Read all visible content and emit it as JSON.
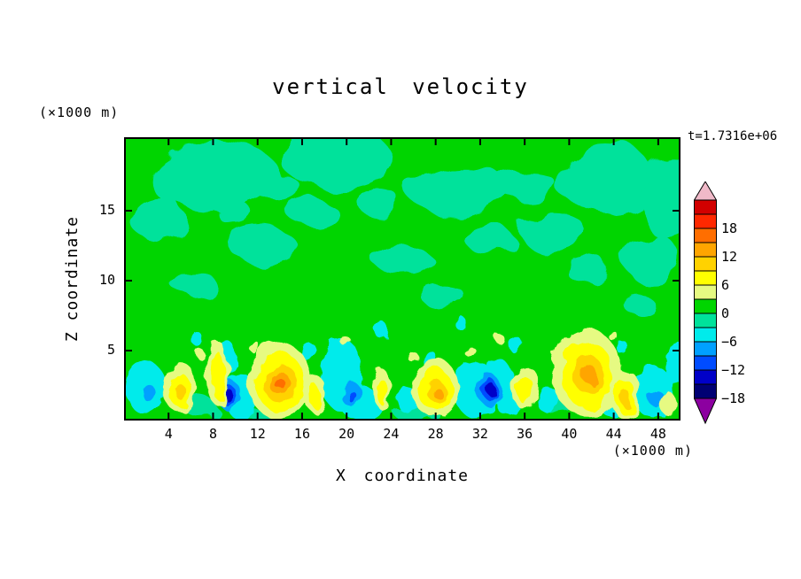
{
  "title": "vertical velocity",
  "time_label": "t=1.7316e+06",
  "y_axis": {
    "label": "Z coordinate",
    "units": "(×1000 m)",
    "ticks": [
      5,
      10,
      15
    ]
  },
  "x_axis": {
    "label": "X coordinate",
    "units": "(×1000 m)",
    "ticks": [
      4,
      8,
      12,
      16,
      20,
      24,
      28,
      32,
      36,
      40,
      44,
      48
    ]
  },
  "colorbar": {
    "tick_labels": [
      "18",
      "12",
      "6",
      "0",
      "−6",
      "−12",
      "−18"
    ],
    "level_step": 3,
    "cell_colors_top_to_bottom": [
      "#d20000",
      "#ff2800",
      "#ff6e00",
      "#ffa500",
      "#ffd200",
      "#ffff00",
      "#e6fa82",
      "#00d500",
      "#00e29b",
      "#00ebeb",
      "#00a0ff",
      "#004cff",
      "#0000c8",
      "#000073"
    ],
    "arrow_top_color": "#f0b9c8",
    "arrow_bottom_color": "#8c00a0"
  },
  "palette": {
    "green_bg": "#00d500",
    "teal": "#00e29b",
    "cyan": "#00ebeb",
    "lightblue": "#00a0ff",
    "blue": "#004cff",
    "darkblue": "#0000c8",
    "paleyellow": "#e6fa82",
    "yellow": "#ffff00",
    "amber": "#ffd200",
    "orange": "#ffa500",
    "deeporange": "#ff6e00"
  },
  "chart_data": {
    "type": "heatmap",
    "title": "vertical velocity",
    "xlabel": "X coordinate (×1000 m)",
    "ylabel": "Z coordinate (×1000 m)",
    "time": "t=1.7316e+06",
    "xlim": [
      0,
      50
    ],
    "ylim": [
      0,
      20
    ],
    "contour_interval": 3,
    "labeled_levels": [
      18,
      12,
      6,
      0,
      -6,
      -12,
      -18
    ],
    "description": "Filled-contour vertical velocity cross-section; near-zero green background aloft with weak negative (teal/cyan) mottling, convective updraft cores (yellow/orange) and downdraft cores (cyan/blue/dark blue) below z≈6.",
    "field": {
      "background_band": {
        "band": "green_bg",
        "value_range": [
          0,
          3
        ]
      },
      "patches": [
        {
          "band": "teal",
          "value_range": [
            -3,
            0
          ],
          "blobs": [
            [
              8,
              17.5,
              6,
              2.5
            ],
            [
              19,
              18.8,
              5,
              2.2
            ],
            [
              30,
              16.5,
              4.5,
              2
            ],
            [
              43,
              17.5,
              4.5,
              2.5
            ],
            [
              49,
              16,
              3,
              3
            ],
            [
              3,
              14.5,
              2.5,
              1.6
            ],
            [
              12.5,
              12.5,
              3,
              1.3
            ],
            [
              17,
              14.8,
              2.2,
              1
            ],
            [
              25,
              11.5,
              2.6,
              1.1
            ],
            [
              33,
              12.8,
              2.2,
              1
            ],
            [
              38.5,
              13.5,
              3,
              1.4
            ],
            [
              42,
              10.5,
              2,
              0.9
            ],
            [
              47.5,
              11.5,
              2.5,
              1.8
            ],
            [
              6,
              10,
              2,
              0.9
            ],
            [
              28.5,
              9,
              2,
              0.8
            ],
            [
              14,
              16.5,
              2,
              1
            ],
            [
              36,
              17,
              2.5,
              1.2
            ],
            [
              23,
              15.5,
              2,
              0.9
            ],
            [
              10,
              14.8,
              1.6,
              0.8
            ],
            [
              46,
              8.5,
              1.4,
              0.7
            ],
            [
              7,
              0.8,
              1.5,
              0.7
            ],
            [
              26,
              0.7,
              2,
              0.6
            ],
            [
              39.5,
              0.8,
              1.5,
              0.6
            ],
            [
              12,
              0.5,
              1.2,
              0.5
            ]
          ]
        },
        {
          "band": "cyan",
          "value_range": [
            -6,
            -3
          ],
          "blobs": [
            [
              2,
              2.3,
              1.8,
              1.9
            ],
            [
              10.4,
              1.8,
              1.6,
              1.6
            ],
            [
              9.2,
              4.6,
              0.9,
              1.1
            ],
            [
              19.6,
              3.2,
              1.9,
              2.6
            ],
            [
              21.2,
              1.3,
              1.9,
              1.2
            ],
            [
              25.6,
              1.4,
              1.1,
              0.9
            ],
            [
              31.6,
              2.2,
              2.0,
              2.0
            ],
            [
              33.6,
              2.8,
              1.4,
              1.6
            ],
            [
              34.6,
              1.2,
              1.1,
              0.9
            ],
            [
              38.2,
              1.4,
              1.1,
              0.9
            ],
            [
              43.6,
              1.1,
              0.9,
              0.7
            ],
            [
              47.6,
              2.0,
              1.9,
              1.8
            ],
            [
              49.6,
              4.2,
              0.9,
              1.6
            ],
            [
              16.6,
              4.9,
              0.7,
              0.7
            ],
            [
              23.2,
              6.4,
              0.6,
              0.6
            ],
            [
              30.2,
              7.0,
              0.5,
              0.5
            ],
            [
              35.2,
              5.4,
              0.6,
              0.6
            ],
            [
              6.6,
              5.8,
              0.5,
              0.5
            ],
            [
              44.8,
              5.2,
              0.5,
              0.5
            ],
            [
              27.4,
              4.4,
              0.6,
              0.7
            ]
          ]
        },
        {
          "band": "lightblue",
          "value_range": [
            -9,
            -6
          ],
          "blobs": [
            [
              9.3,
              1.9,
              1.2,
              1.0
            ],
            [
              20.4,
              1.9,
              0.9,
              0.9
            ],
            [
              32.8,
              2.2,
              1.1,
              1.1
            ],
            [
              47.8,
              1.6,
              0.7,
              0.6
            ],
            [
              2.2,
              2.0,
              0.6,
              0.6
            ]
          ]
        },
        {
          "band": "blue",
          "value_range": [
            -12,
            -9
          ],
          "blobs": [
            [
              9.3,
              1.85,
              0.85,
              0.65
            ],
            [
              32.9,
              2.2,
              0.7,
              0.75
            ],
            [
              20.5,
              1.7,
              0.4,
              0.4
            ]
          ]
        },
        {
          "band": "darkblue",
          "value_range": [
            -15,
            -12
          ],
          "blobs": [
            [
              9.4,
              1.8,
              0.5,
              0.4
            ],
            [
              33.0,
              2.2,
              0.4,
              0.45
            ]
          ]
        },
        {
          "band": "paleyellow",
          "value_range": [
            3,
            6
          ],
          "blobs": [
            [
              5,
              2.4,
              1.5,
              1.8
            ],
            [
              8.4,
              3.4,
              1.0,
              2.3
            ],
            [
              14,
              2.8,
              2.9,
              2.7
            ],
            [
              17.2,
              1.9,
              1.0,
              1.3
            ],
            [
              23.1,
              2.3,
              0.9,
              1.4
            ],
            [
              28,
              2.3,
              2.1,
              2.1
            ],
            [
              36,
              2.4,
              1.2,
              1.6
            ],
            [
              41.6,
              3.4,
              3.1,
              3.1
            ],
            [
              45,
              1.9,
              1.5,
              1.7
            ],
            [
              48.9,
              1.2,
              0.8,
              0.8
            ],
            [
              11.8,
              5.2,
              0.5,
              0.4
            ],
            [
              20,
              5.6,
              0.4,
              0.4
            ],
            [
              31,
              5.0,
              0.5,
              0.4
            ],
            [
              44,
              6.0,
              0.4,
              0.35
            ],
            [
              6.8,
              4.8,
              0.4,
              0.35
            ],
            [
              25.9,
              4.6,
              0.45,
              0.4
            ],
            [
              38.8,
              4.4,
              0.45,
              0.4
            ],
            [
              33.8,
              5.8,
              0.4,
              0.35
            ]
          ]
        },
        {
          "band": "yellow",
          "value_range": [
            6,
            9
          ],
          "blobs": [
            [
              5,
              2.2,
              1.0,
              1.2
            ],
            [
              8.45,
              3.2,
              0.6,
              1.7
            ],
            [
              14,
              2.75,
              2.2,
              2.1
            ],
            [
              17.2,
              1.7,
              0.55,
              0.8
            ],
            [
              23.1,
              2.1,
              0.5,
              0.9
            ],
            [
              28,
              2.2,
              1.5,
              1.5
            ],
            [
              36,
              2.2,
              0.7,
              1.0
            ],
            [
              41.6,
              3.3,
              2.3,
              2.4
            ],
            [
              45,
              1.7,
              1.0,
              1.2
            ]
          ]
        },
        {
          "band": "amber",
          "value_range": [
            9,
            12
          ],
          "blobs": [
            [
              14,
              2.7,
              1.5,
              1.4
            ],
            [
              28,
              2.15,
              0.8,
              0.8
            ],
            [
              41.7,
              3.3,
              1.3,
              1.4
            ],
            [
              45,
              1.6,
              0.5,
              0.6
            ],
            [
              5,
              2.1,
              0.45,
              0.55
            ]
          ]
        },
        {
          "band": "orange",
          "value_range": [
            12,
            15
          ],
          "blobs": [
            [
              14.0,
              2.65,
              0.9,
              0.85
            ],
            [
              41.8,
              3.3,
              0.6,
              0.7
            ],
            [
              28,
              2.1,
              0.4,
              0.4
            ]
          ]
        },
        {
          "band": "deeporange",
          "value_range": [
            15,
            18
          ],
          "blobs": [
            [
              14.05,
              2.6,
              0.45,
              0.4
            ]
          ]
        }
      ]
    }
  }
}
